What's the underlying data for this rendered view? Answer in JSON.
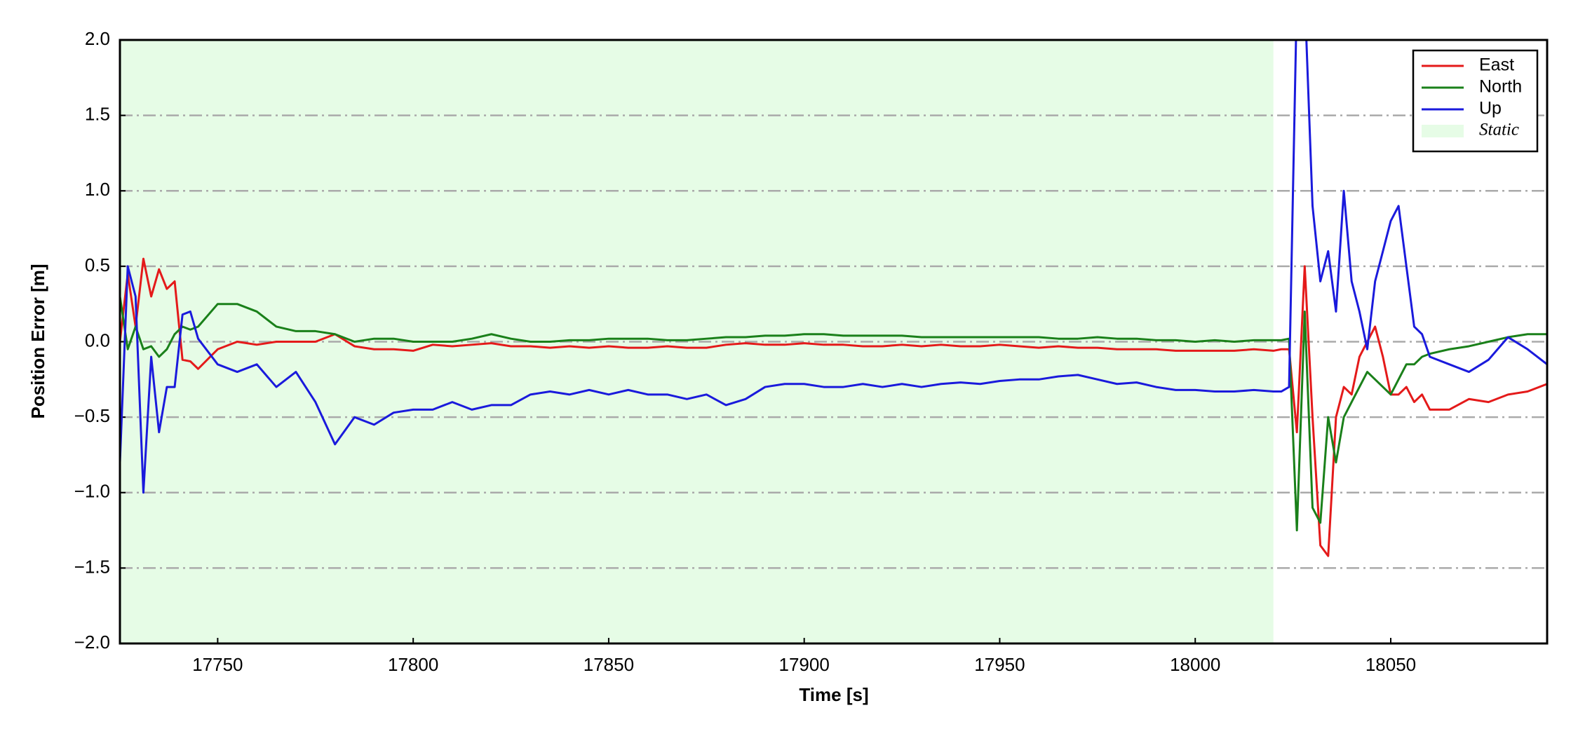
{
  "chart_data": {
    "type": "line",
    "xlabel": "Time [s]",
    "ylabel": "Position Error [m]",
    "xlim": [
      17725,
      18090
    ],
    "ylim": [
      -2,
      2
    ],
    "xticks": [
      17750,
      17800,
      17850,
      17900,
      17950,
      18000,
      18050
    ],
    "yticks": [
      {
        "value": -2,
        "label": "−2.0"
      },
      {
        "value": -1.5,
        "label": "−1.5"
      },
      {
        "value": -1,
        "label": "−1.0"
      },
      {
        "value": -0.5,
        "label": "−0.5"
      },
      {
        "value": 0,
        "label": "0.0"
      },
      0.5,
      {
        "value": 1,
        "label": "1.0"
      },
      1.5,
      {
        "value": 2,
        "label": "2.0"
      }
    ],
    "grid": true,
    "legend": "upper right",
    "spans": [
      {
        "name": "Static",
        "x0": 17725,
        "x1": 18020,
        "color": "#e6fce6"
      }
    ],
    "x": [
      17725,
      17727,
      17729,
      17731,
      17733,
      17735,
      17737,
      17739,
      17741,
      17743,
      17745,
      17750,
      17755,
      17760,
      17765,
      17770,
      17775,
      17780,
      17785,
      17790,
      17795,
      17800,
      17805,
      17810,
      17815,
      17820,
      17825,
      17830,
      17835,
      17840,
      17845,
      17850,
      17855,
      17860,
      17865,
      17870,
      17875,
      17880,
      17885,
      17890,
      17895,
      17900,
      17905,
      17910,
      17915,
      17920,
      17925,
      17930,
      17935,
      17940,
      17945,
      17950,
      17955,
      17960,
      17965,
      17970,
      17975,
      17980,
      17985,
      17990,
      17995,
      18000,
      18005,
      18010,
      18015,
      18020,
      18022,
      18024,
      18026,
      18028,
      18030,
      18032,
      18034,
      18036,
      18038,
      18040,
      18042,
      18044,
      18046,
      18048,
      18050,
      18052,
      18054,
      18056,
      18058,
      18060,
      18065,
      18070,
      18075,
      18080,
      18085,
      18090
    ],
    "series": [
      {
        "name": "East",
        "color": "#e41a1a",
        "values": [
          0.0,
          0.45,
          0.1,
          0.55,
          0.3,
          0.48,
          0.35,
          0.4,
          -0.12,
          -0.13,
          -0.18,
          -0.05,
          0.0,
          -0.02,
          0.0,
          0.0,
          0.0,
          0.05,
          -0.03,
          -0.05,
          -0.05,
          -0.06,
          -0.02,
          -0.03,
          -0.02,
          -0.01,
          -0.03,
          -0.03,
          -0.04,
          -0.03,
          -0.04,
          -0.03,
          -0.04,
          -0.04,
          -0.03,
          -0.04,
          -0.04,
          -0.02,
          -0.01,
          -0.02,
          -0.02,
          -0.01,
          -0.02,
          -0.02,
          -0.03,
          -0.03,
          -0.02,
          -0.03,
          -0.02,
          -0.03,
          -0.03,
          -0.02,
          -0.03,
          -0.04,
          -0.03,
          -0.04,
          -0.04,
          -0.05,
          -0.05,
          -0.05,
          -0.06,
          -0.06,
          -0.06,
          -0.06,
          -0.05,
          -0.06,
          -0.05,
          -0.05,
          -0.6,
          0.5,
          -0.5,
          -1.35,
          -1.42,
          -0.5,
          -0.3,
          -0.35,
          -0.1,
          0.0,
          0.1,
          -0.1,
          -0.35,
          -0.35,
          -0.3,
          -0.4,
          -0.35,
          -0.45,
          -0.45,
          -0.38,
          -0.4,
          -0.35,
          -0.33,
          -0.28
        ]
      },
      {
        "name": "North",
        "color": "#1a801a",
        "values": [
          0.3,
          -0.05,
          0.1,
          -0.05,
          -0.03,
          -0.1,
          -0.05,
          0.05,
          0.1,
          0.08,
          0.1,
          0.25,
          0.25,
          0.2,
          0.1,
          0.07,
          0.07,
          0.05,
          0.0,
          0.02,
          0.02,
          0.0,
          0.0,
          0.0,
          0.02,
          0.05,
          0.02,
          0.0,
          0.0,
          0.01,
          0.01,
          0.02,
          0.02,
          0.02,
          0.01,
          0.01,
          0.02,
          0.03,
          0.03,
          0.04,
          0.04,
          0.05,
          0.05,
          0.04,
          0.04,
          0.04,
          0.04,
          0.03,
          0.03,
          0.03,
          0.03,
          0.03,
          0.03,
          0.03,
          0.02,
          0.02,
          0.03,
          0.02,
          0.02,
          0.01,
          0.01,
          0.0,
          0.01,
          0.0,
          0.01,
          0.01,
          0.01,
          0.02,
          -1.25,
          0.2,
          -1.1,
          -1.2,
          -0.5,
          -0.8,
          -0.5,
          -0.4,
          -0.3,
          -0.2,
          -0.25,
          -0.3,
          -0.35,
          -0.25,
          -0.15,
          -0.15,
          -0.1,
          -0.08,
          -0.05,
          -0.03,
          0.0,
          0.03,
          0.05,
          0.05
        ]
      },
      {
        "name": "Up",
        "color": "#1a1adc",
        "values": [
          -0.8,
          0.5,
          0.3,
          -1.0,
          -0.1,
          -0.6,
          -0.3,
          -0.3,
          0.18,
          0.2,
          0.02,
          -0.15,
          -0.2,
          -0.15,
          -0.3,
          -0.2,
          -0.4,
          -0.68,
          -0.5,
          -0.55,
          -0.47,
          -0.45,
          -0.45,
          -0.4,
          -0.45,
          -0.42,
          -0.42,
          -0.35,
          -0.33,
          -0.35,
          -0.32,
          -0.35,
          -0.32,
          -0.35,
          -0.35,
          -0.38,
          -0.35,
          -0.42,
          -0.38,
          -0.3,
          -0.28,
          -0.28,
          -0.3,
          -0.3,
          -0.28,
          -0.3,
          -0.28,
          -0.3,
          -0.28,
          -0.27,
          -0.28,
          -0.26,
          -0.25,
          -0.25,
          -0.23,
          -0.22,
          -0.25,
          -0.28,
          -0.27,
          -0.3,
          -0.32,
          -0.32,
          -0.33,
          -0.33,
          -0.32,
          -0.33,
          -0.33,
          -0.3,
          2.3,
          2.3,
          0.9,
          0.4,
          0.6,
          0.2,
          1.0,
          0.4,
          0.2,
          -0.05,
          0.4,
          0.6,
          0.8,
          0.9,
          0.5,
          0.1,
          0.05,
          -0.1,
          -0.15,
          -0.2,
          -0.12,
          0.03,
          -0.05,
          -0.15
        ]
      }
    ]
  }
}
